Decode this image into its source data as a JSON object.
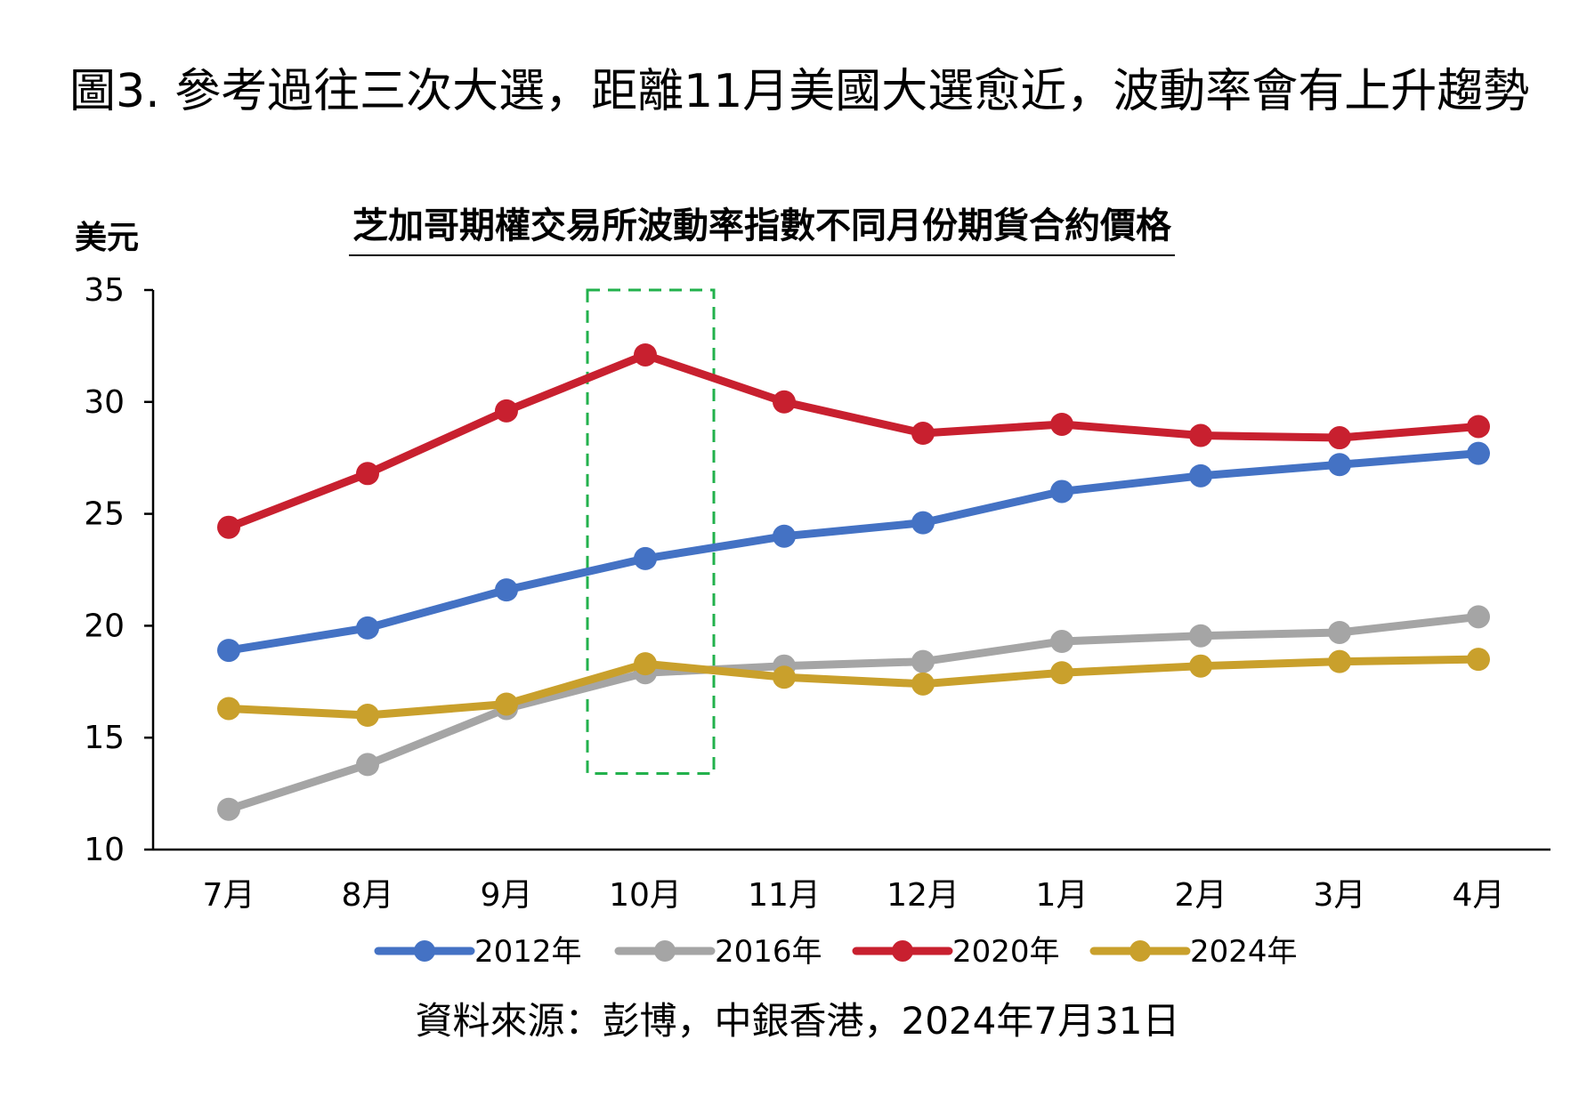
{
  "figure_title": "圖3. 參考過往三次大選，距離11月美國大選愈近，波動率會有上升趨勢",
  "source": "資料來源：彭博，中銀香港，2024年7月31日",
  "chart_data": {
    "type": "line",
    "title": "芝加哥期權交易所波動率指數不同月份期貨合約價格",
    "ylabel": "美元",
    "xlabel": "",
    "categories": [
      "7月",
      "8月",
      "9月",
      "10月",
      "11月",
      "12月",
      "1月",
      "2月",
      "3月",
      "4月"
    ],
    "ylim": [
      10,
      35
    ],
    "yticks": [
      10,
      15,
      20,
      25,
      30,
      35
    ],
    "grid": false,
    "legend_position": "bottom",
    "highlight_category": "10月",
    "highlight_color": "#22b14c",
    "series": [
      {
        "name": "2012年",
        "color": "#4472c4",
        "values": [
          18.9,
          19.9,
          21.6,
          23.0,
          24.0,
          24.6,
          26.0,
          26.7,
          27.2,
          27.7
        ]
      },
      {
        "name": "2016年",
        "color": "#a5a5a5",
        "values": [
          11.8,
          13.8,
          16.3,
          17.9,
          18.2,
          18.4,
          19.3,
          19.55,
          19.7,
          20.4
        ]
      },
      {
        "name": "2020年",
        "color": "#c8202f",
        "values": [
          24.4,
          26.8,
          29.6,
          32.1,
          30.0,
          28.6,
          29.0,
          28.5,
          28.4,
          28.9
        ]
      },
      {
        "name": "2024年",
        "color": "#c9a02c",
        "values": [
          16.3,
          16.0,
          16.5,
          18.3,
          17.7,
          17.4,
          17.9,
          18.2,
          18.4,
          18.5
        ]
      }
    ]
  }
}
